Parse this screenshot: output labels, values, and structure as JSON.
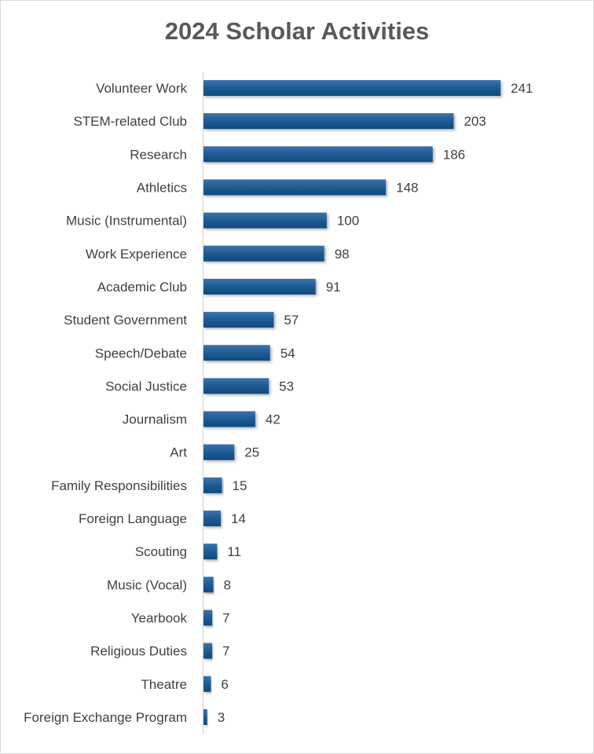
{
  "chart_data": {
    "type": "bar",
    "orientation": "horizontal",
    "title": "2024 Scholar Activities",
    "categories": [
      "Volunteer Work",
      "STEM-related Club",
      "Research",
      "Athletics",
      "Music (Instrumental)",
      "Work Experience",
      "Academic Club",
      "Student Government",
      "Speech/Debate",
      "Social Justice",
      "Journalism",
      "Art",
      "Family Responsibilities",
      "Foreign Language",
      "Scouting",
      "Music (Vocal)",
      "Yearbook",
      "Religious Duties",
      "Theatre",
      "Foreign Exchange Program"
    ],
    "values": [
      241,
      203,
      186,
      148,
      100,
      98,
      91,
      57,
      54,
      53,
      42,
      25,
      15,
      14,
      11,
      8,
      7,
      7,
      6,
      3
    ],
    "xlim": [
      0,
      241
    ],
    "data_labels": true,
    "grid": false,
    "bar_color": "#1f5a93",
    "bar_color_dark": "#0e4a80"
  }
}
